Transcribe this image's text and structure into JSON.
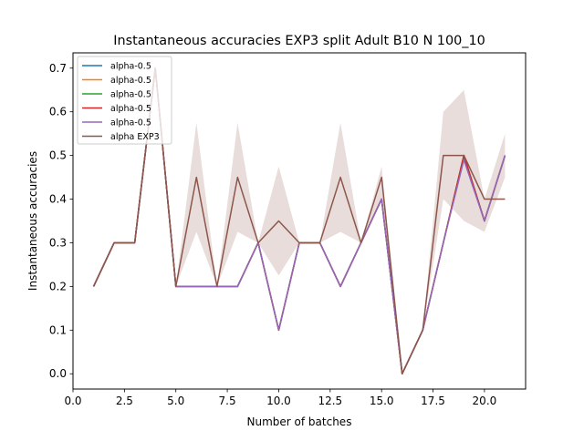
{
  "chart_data": {
    "type": "line",
    "title": "Instantaneous accuracies EXP3 split Adult B10 N 100_10",
    "xlabel": "Number of batches",
    "ylabel": "Instantaneous accuracies",
    "xlim": [
      0.0,
      22.0
    ],
    "ylim": [
      -0.035,
      0.735
    ],
    "xticks": [
      0.0,
      2.5,
      5.0,
      7.5,
      10.0,
      12.5,
      15.0,
      17.5,
      20.0
    ],
    "xtick_labels": [
      "0.0",
      "2.5",
      "5.0",
      "7.5",
      "10.0",
      "12.5",
      "15.0",
      "17.5",
      "20.0"
    ],
    "yticks": [
      0.0,
      0.1,
      0.2,
      0.3,
      0.4,
      0.5,
      0.6,
      0.7
    ],
    "ytick_labels": [
      "0.0",
      "0.1",
      "0.2",
      "0.3",
      "0.4",
      "0.5",
      "0.6",
      "0.7"
    ],
    "grid": false,
    "legend_position": "top-left",
    "x": [
      1,
      2,
      3,
      4,
      5,
      6,
      7,
      8,
      9,
      10,
      11,
      12,
      13,
      14,
      15,
      16,
      17,
      18,
      19,
      20,
      21
    ],
    "series": [
      {
        "name": "alpha-0.5",
        "color": "#1f77b4",
        "values": [
          0.2,
          0.3,
          0.3,
          0.7,
          0.2,
          0.2,
          0.2,
          0.2,
          0.3,
          0.1,
          0.3,
          0.3,
          0.2,
          0.3,
          0.4,
          0.0,
          0.1,
          0.3,
          0.5,
          0.35,
          0.5
        ]
      },
      {
        "name": "alpha-0.5",
        "color": "#ff7f0e",
        "values": [
          0.2,
          0.3,
          0.3,
          0.7,
          0.2,
          0.2,
          0.2,
          0.2,
          0.3,
          0.1,
          0.3,
          0.3,
          0.2,
          0.3,
          0.4,
          0.0,
          0.1,
          0.3,
          0.5,
          0.35,
          0.5
        ]
      },
      {
        "name": "alpha-0.5",
        "color": "#2ca02c",
        "values": [
          0.2,
          0.3,
          0.3,
          0.7,
          0.2,
          0.2,
          0.2,
          0.2,
          0.3,
          0.1,
          0.3,
          0.3,
          0.2,
          0.3,
          0.4,
          0.0,
          0.1,
          0.3,
          0.5,
          0.35,
          0.5
        ]
      },
      {
        "name": "alpha-0.5",
        "color": "#d62728",
        "values": [
          0.2,
          0.3,
          0.3,
          0.7,
          0.2,
          0.2,
          0.2,
          0.2,
          0.3,
          0.1,
          0.3,
          0.3,
          0.2,
          0.3,
          0.4,
          0.0,
          0.1,
          0.3,
          0.5,
          0.35,
          0.5
        ]
      },
      {
        "name": "alpha-0.5",
        "color": "#9467bd",
        "values": [
          0.2,
          0.3,
          0.3,
          0.7,
          0.2,
          0.2,
          0.2,
          0.2,
          0.3,
          0.1,
          0.3,
          0.3,
          0.2,
          0.3,
          0.4,
          0.0,
          0.1,
          0.3,
          0.49,
          0.35,
          0.5
        ]
      },
      {
        "name": "alpha EXP3",
        "color": "#8c564b",
        "values": [
          0.2,
          0.3,
          0.3,
          0.7,
          0.2,
          0.45,
          0.2,
          0.45,
          0.3,
          0.35,
          0.3,
          0.3,
          0.45,
          0.3,
          0.45,
          0.0,
          0.1,
          0.5,
          0.5,
          0.4,
          0.4
        ],
        "band_lower": [
          0.2,
          0.3,
          0.3,
          0.7,
          0.2,
          0.325,
          0.2,
          0.325,
          0.3,
          0.225,
          0.3,
          0.3,
          0.325,
          0.3,
          0.4,
          0.0,
          0.1,
          0.4,
          0.35,
          0.325,
          0.45
        ],
        "band_upper": [
          0.2,
          0.3,
          0.3,
          0.7,
          0.2,
          0.575,
          0.2,
          0.575,
          0.3,
          0.475,
          0.3,
          0.3,
          0.575,
          0.3,
          0.475,
          0.0,
          0.1,
          0.6,
          0.65,
          0.4,
          0.55
        ]
      }
    ]
  }
}
